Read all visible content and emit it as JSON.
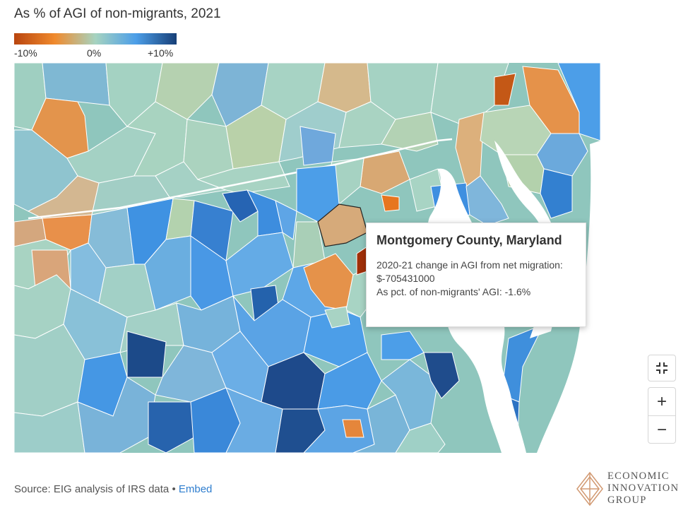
{
  "title": "As % of AGI of non-migrants, 2021",
  "legend": {
    "ticks": [
      "-10%",
      "0%",
      "+10%"
    ],
    "colors": [
      "#b9450f",
      "#f08a2d",
      "#a6d3c0",
      "#4c9ee8",
      "#173f77"
    ]
  },
  "tooltip": {
    "title": "Montgomery County, Maryland",
    "line1": "2020-21 change in AGI from net migration: $-705431000",
    "line2": "As pct. of non-migrants' AGI: -1.6%"
  },
  "controls": {
    "fullscreen_icon": "fullscreen-exit-icon",
    "zoom_in": "+",
    "zoom_out": "−"
  },
  "footer": {
    "source": "Source: EIG analysis of IRS data",
    "separator": " • ",
    "embed": "Embed"
  },
  "logo": {
    "lines": [
      "ECONOMIC",
      "INNOVATION",
      "GROUP"
    ]
  }
}
